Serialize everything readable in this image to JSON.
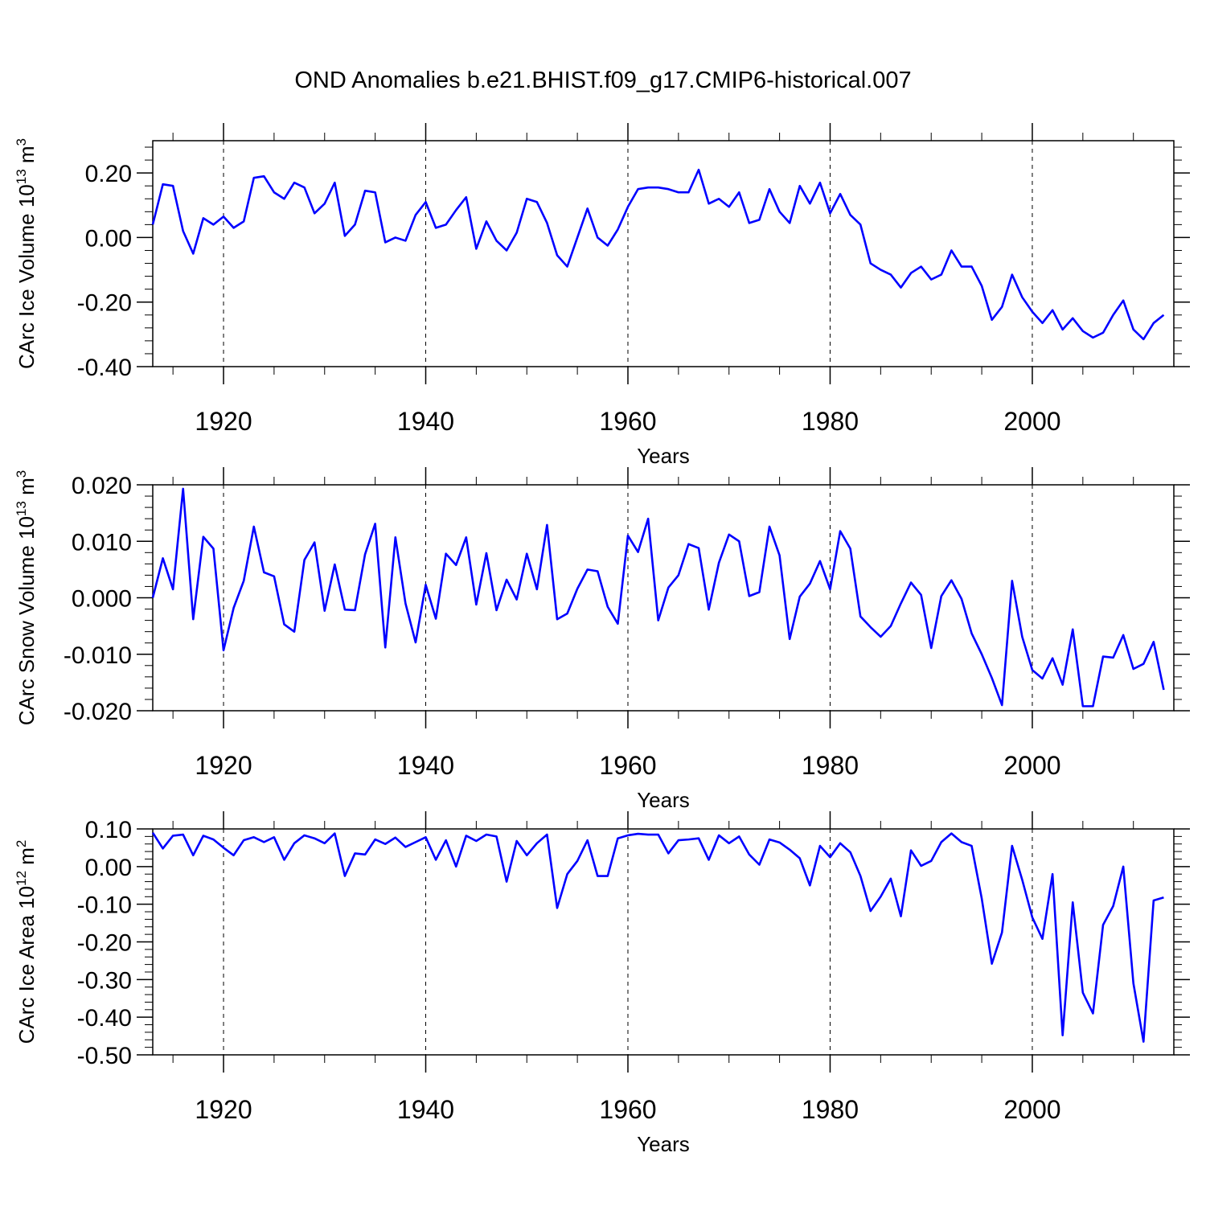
{
  "figure": {
    "title": "OND Anomalies b.e21.BHIST.f09_g17.CMIP6-historical.007"
  },
  "chart_data": [
    {
      "type": "line",
      "xlabel": "Years",
      "ylabel": "CArc Ice Volume 10",
      "ylabel_exp": "13",
      "ylabel_unit": " m",
      "ylabel_unit_exp": "3",
      "xlim": [
        1913,
        2014
      ],
      "ylim": [
        -0.4,
        0.3
      ],
      "yticks": [
        -0.4,
        -0.2,
        0.0,
        0.2
      ],
      "ytick_labels": [
        "-0.40",
        "-0.20",
        "0.00",
        "0.20"
      ],
      "xticks": [
        1920,
        1940,
        1960,
        1980,
        2000
      ],
      "xtick_labels": [
        "1920",
        "1940",
        "1960",
        "1980",
        "2000"
      ],
      "grid_x": "dashed at major ticks",
      "color": "#0000ff",
      "x_start": 1913,
      "values": [
        0.04,
        0.165,
        0.16,
        0.02,
        -0.05,
        0.06,
        0.04,
        0.065,
        0.03,
        0.05,
        0.185,
        0.19,
        0.14,
        0.12,
        0.17,
        0.155,
        0.075,
        0.105,
        0.17,
        0.005,
        0.04,
        0.145,
        0.14,
        -0.015,
        0.0,
        -0.01,
        0.07,
        0.11,
        0.03,
        0.04,
        0.085,
        0.125,
        -0.035,
        0.05,
        -0.01,
        -0.04,
        0.015,
        0.12,
        0.11,
        0.045,
        -0.055,
        -0.09,
        0.0,
        0.09,
        0.0,
        -0.025,
        0.025,
        0.095,
        0.15,
        0.155,
        0.155,
        0.15,
        0.14,
        0.14,
        0.21,
        0.105,
        0.12,
        0.095,
        0.14,
        0.045,
        0.055,
        0.15,
        0.08,
        0.045,
        0.16,
        0.105,
        0.17,
        0.075,
        0.135,
        0.07,
        0.04,
        -0.08,
        -0.1,
        -0.115,
        -0.155,
        -0.11,
        -0.09,
        -0.13,
        -0.115,
        -0.04,
        -0.09,
        -0.09,
        -0.15,
        -0.255,
        -0.215,
        -0.115,
        -0.185,
        -0.23,
        -0.265,
        -0.225,
        -0.285,
        -0.25,
        -0.29,
        -0.31,
        -0.295,
        -0.24,
        -0.195,
        -0.285,
        -0.315,
        -0.265,
        -0.24
      ]
    },
    {
      "type": "line",
      "xlabel": "Years",
      "ylabel": "CArc Snow Volume 10",
      "ylabel_exp": "13",
      "ylabel_unit": " m",
      "ylabel_unit_exp": "3",
      "xlim": [
        1913,
        2014
      ],
      "ylim": [
        -0.02,
        0.02
      ],
      "yticks": [
        -0.02,
        -0.01,
        0.0,
        0.01,
        0.02
      ],
      "ytick_labels": [
        "-0.020",
        "-0.010",
        "0.000",
        "0.010",
        "0.020"
      ],
      "xticks": [
        1920,
        1940,
        1960,
        1980,
        2000
      ],
      "xtick_labels": [
        "1920",
        "1940",
        "1960",
        "1980",
        "2000"
      ],
      "grid_x": "dashed at major ticks",
      "color": "#0000ff",
      "x_start": 1913,
      "values": [
        0.0,
        0.007,
        0.0015,
        0.0193,
        -0.0038,
        0.0108,
        0.0087,
        -0.0093,
        -0.0018,
        0.003,
        0.0126,
        0.0045,
        0.0038,
        -0.0047,
        -0.006,
        0.0067,
        0.0098,
        -0.0023,
        0.0059,
        -0.0021,
        -0.0022,
        0.0077,
        0.0131,
        -0.0088,
        0.0107,
        -0.001,
        -0.0079,
        0.0023,
        -0.0037,
        0.0078,
        0.0058,
        0.0107,
        -0.0012,
        0.0079,
        -0.0022,
        0.0032,
        -0.0003,
        0.0078,
        0.0015,
        0.0129,
        -0.0038,
        -0.0028,
        0.0016,
        0.005,
        0.0047,
        -0.0016,
        -0.0046,
        0.011,
        0.0081,
        0.014,
        -0.004,
        0.0018,
        0.004,
        0.0095,
        0.0088,
        -0.0021,
        0.0062,
        0.0112,
        0.01,
        0.0003,
        0.001,
        0.0126,
        0.0075,
        -0.0073,
        0.0002,
        0.0025,
        0.0065,
        0.0015,
        0.0118,
        0.0087,
        -0.0033,
        -0.0052,
        -0.0069,
        -0.005,
        -0.001,
        0.0027,
        0.0005,
        -0.0089,
        0.0003,
        0.0031,
        -0.0002,
        -0.0063,
        -0.01,
        -0.0142,
        -0.019,
        0.003,
        -0.0069,
        -0.0128,
        -0.0143,
        -0.0107,
        -0.0154,
        -0.0056,
        -0.0192,
        -0.0192,
        -0.0104,
        -0.0106,
        -0.0066,
        -0.0126,
        -0.0117,
        -0.0078,
        -0.0163
      ]
    },
    {
      "type": "line",
      "xlabel": "Years",
      "ylabel": "CArc Ice Area 10",
      "ylabel_exp": "12",
      "ylabel_unit": " m",
      "ylabel_unit_exp": "2",
      "xlim": [
        1913,
        2014
      ],
      "ylim": [
        -0.5,
        0.1
      ],
      "yticks": [
        -0.5,
        -0.4,
        -0.3,
        -0.2,
        -0.1,
        0.0,
        0.1
      ],
      "ytick_labels": [
        "-0.50",
        "-0.40",
        "-0.30",
        "-0.20",
        "-0.10",
        "0.00",
        "0.10"
      ],
      "xticks": [
        1920,
        1940,
        1960,
        1980,
        2000
      ],
      "xtick_labels": [
        "1920",
        "1940",
        "1960",
        "1980",
        "2000"
      ],
      "grid_x": "dashed at major ticks",
      "color": "#0000ff",
      "x_start": 1913,
      "values": [
        0.09,
        0.048,
        0.082,
        0.085,
        0.03,
        0.082,
        0.072,
        0.05,
        0.03,
        0.07,
        0.078,
        0.065,
        0.078,
        0.018,
        0.062,
        0.083,
        0.075,
        0.062,
        0.088,
        -0.025,
        0.035,
        0.032,
        0.072,
        0.06,
        0.077,
        0.052,
        0.065,
        0.078,
        0.018,
        0.07,
        0.0,
        0.082,
        0.068,
        0.085,
        0.08,
        -0.04,
        0.068,
        0.03,
        0.062,
        0.085,
        -0.11,
        -0.02,
        0.015,
        0.07,
        -0.025,
        -0.025,
        0.075,
        0.083,
        0.087,
        0.085,
        0.085,
        0.035,
        0.07,
        0.072,
        0.075,
        0.018,
        0.083,
        0.062,
        0.08,
        0.032,
        0.005,
        0.072,
        0.064,
        0.045,
        0.022,
        -0.05,
        0.055,
        0.025,
        0.062,
        0.038,
        -0.025,
        -0.118,
        -0.08,
        -0.032,
        -0.132,
        0.043,
        0.002,
        0.015,
        0.065,
        0.088,
        0.065,
        0.055,
        -0.085,
        -0.258,
        -0.175,
        0.055,
        -0.035,
        -0.135,
        -0.192,
        -0.02,
        -0.448,
        -0.095,
        -0.335,
        -0.39,
        -0.155,
        -0.105,
        0.0,
        -0.31,
        -0.465,
        -0.09,
        -0.082
      ]
    }
  ]
}
